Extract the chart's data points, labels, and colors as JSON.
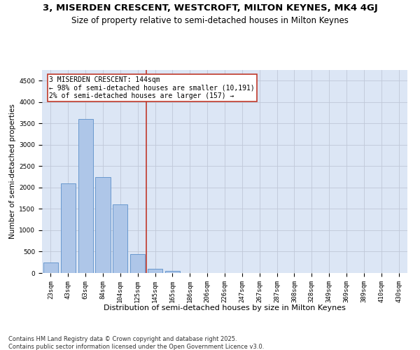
{
  "title": "3, MISERDEN CRESCENT, WESTCROFT, MILTON KEYNES, MK4 4GJ",
  "subtitle": "Size of property relative to semi-detached houses in Milton Keynes",
  "xlabel": "Distribution of semi-detached houses by size in Milton Keynes",
  "ylabel": "Number of semi-detached properties",
  "bin_labels": [
    "23sqm",
    "43sqm",
    "63sqm",
    "84sqm",
    "104sqm",
    "125sqm",
    "145sqm",
    "165sqm",
    "186sqm",
    "206sqm",
    "226sqm",
    "247sqm",
    "267sqm",
    "287sqm",
    "308sqm",
    "328sqm",
    "349sqm",
    "369sqm",
    "389sqm",
    "410sqm",
    "430sqm"
  ],
  "bar_values": [
    250,
    2100,
    3600,
    2250,
    1600,
    450,
    100,
    55,
    0,
    0,
    0,
    0,
    0,
    0,
    0,
    0,
    0,
    0,
    0,
    0,
    0
  ],
  "bar_color": "#aec6e8",
  "bar_edge_color": "#5b8fc9",
  "grid_color": "#c0c8d8",
  "background_color": "#dce6f5",
  "vline_color": "#c0392b",
  "annotation_text": "3 MISERDEN CRESCENT: 144sqm\n← 98% of semi-detached houses are smaller (10,191)\n2% of semi-detached houses are larger (157) →",
  "annotation_box_color": "#c0392b",
  "ylim": [
    0,
    4750
  ],
  "yticks": [
    0,
    500,
    1000,
    1500,
    2000,
    2500,
    3000,
    3500,
    4000,
    4500
  ],
  "footnote": "Contains HM Land Registry data © Crown copyright and database right 2025.\nContains public sector information licensed under the Open Government Licence v3.0.",
  "title_fontsize": 9.5,
  "subtitle_fontsize": 8.5,
  "xlabel_fontsize": 8,
  "ylabel_fontsize": 7.5,
  "tick_fontsize": 6.5,
  "annotation_fontsize": 7,
  "footnote_fontsize": 6
}
